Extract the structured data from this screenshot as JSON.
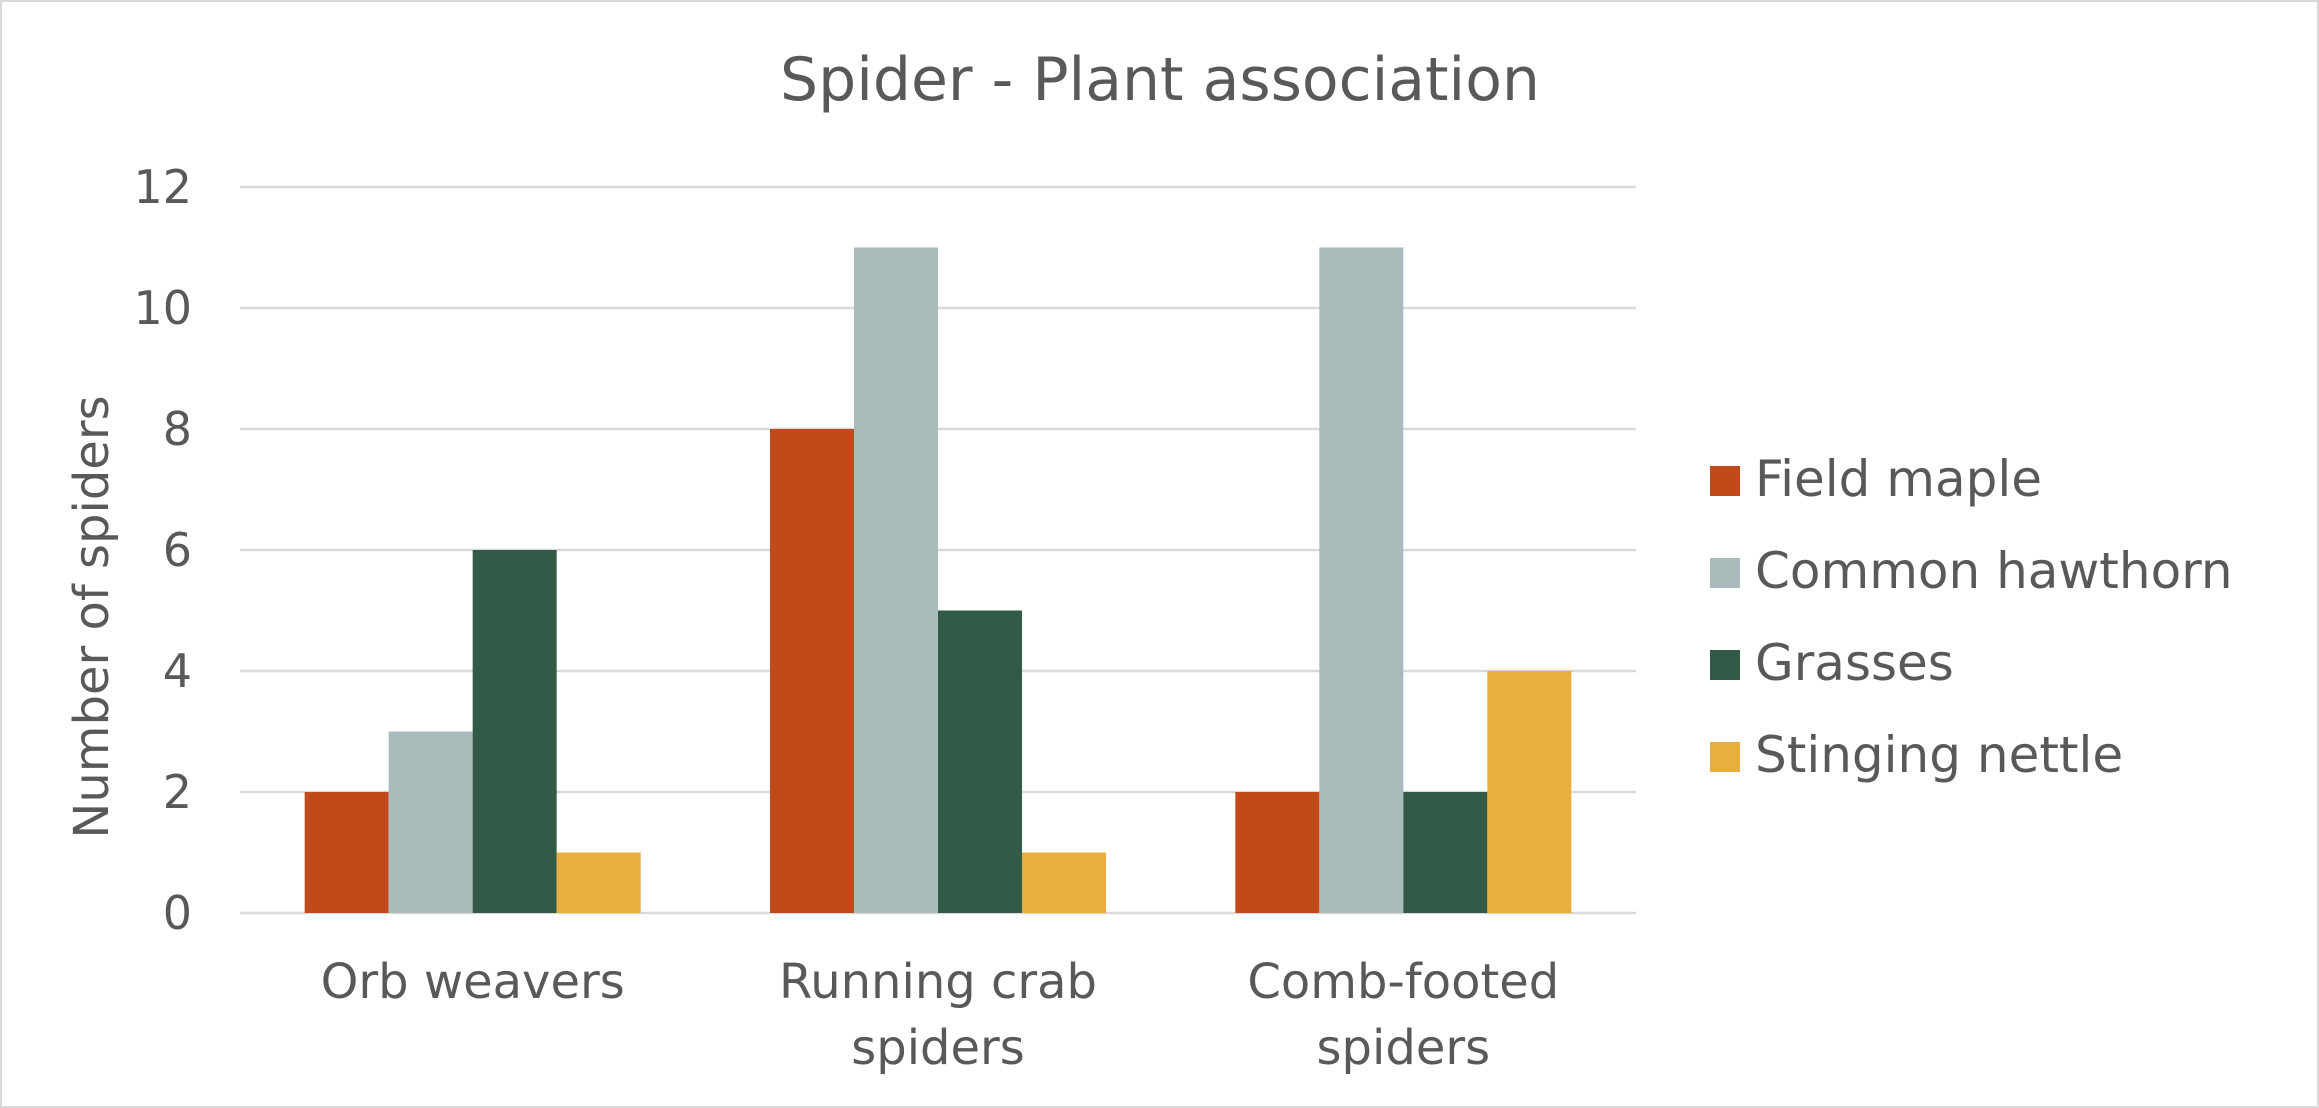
{
  "chart_data": {
    "type": "bar",
    "title": "Spider - Plant association",
    "xlabel": "",
    "ylabel": "Number of spiders",
    "ylim": [
      0,
      12
    ],
    "yticks": [
      0,
      2,
      4,
      6,
      8,
      10,
      12
    ],
    "grid": true,
    "legend_position": "right",
    "categories": [
      [
        "Orb weavers"
      ],
      [
        "Running crab",
        "spiders"
      ],
      [
        "Comb-footed",
        "spiders"
      ]
    ],
    "series": [
      {
        "name": "Field maple",
        "color": "#C04A19",
        "values": [
          2,
          8,
          2
        ]
      },
      {
        "name": "Common hawthorn",
        "color": "#A9BBBA",
        "values": [
          3,
          11,
          11
        ]
      },
      {
        "name": "Grasses",
        "color": "#325A46",
        "values": [
          6,
          5,
          2
        ]
      },
      {
        "name": "Stinging nettle",
        "color": "#E8AE3E",
        "values": [
          1,
          1,
          4
        ]
      }
    ]
  }
}
